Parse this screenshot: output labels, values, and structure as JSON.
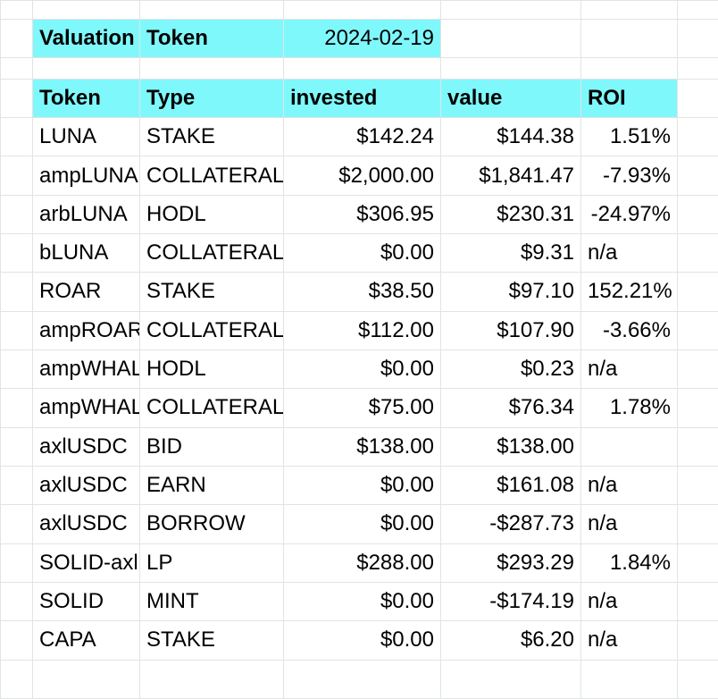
{
  "colors": {
    "highlight": "#7ff8fb",
    "grid": "#e2e3e3"
  },
  "header": {
    "label1": "Valuation",
    "label2": "Token",
    "date": "2024-02-19"
  },
  "columns": [
    "Token",
    "Type",
    "invested",
    "value",
    "ROI"
  ],
  "rows": [
    {
      "token": "LUNA",
      "type": "STAKE",
      "invested": "$142.24",
      "value": "$144.38",
      "roi": "1.51%",
      "roi_align": "right"
    },
    {
      "token": "ampLUNA",
      "type": "COLLATERAL",
      "invested": "$2,000.00",
      "value": "$1,841.47",
      "roi": "-7.93%",
      "roi_align": "right"
    },
    {
      "token": "arbLUNA",
      "type": "HODL",
      "invested": "$306.95",
      "value": "$230.31",
      "roi": "-24.97%",
      "roi_align": "right"
    },
    {
      "token": "bLUNA",
      "type": "COLLATERAL",
      "invested": "$0.00",
      "value": "$9.31",
      "roi": "n/a",
      "roi_align": "left"
    },
    {
      "token": "ROAR",
      "type": "STAKE",
      "invested": "$38.50",
      "value": "$97.10",
      "roi": "152.21%",
      "roi_align": "right"
    },
    {
      "token": "ampROAR",
      "type": "COLLATERAL",
      "invested": "$112.00",
      "value": "$107.90",
      "roi": "-3.66%",
      "roi_align": "right"
    },
    {
      "token": "ampWHALE",
      "type": "HODL",
      "invested": "$0.00",
      "value": "$0.23",
      "roi": "n/a",
      "roi_align": "left"
    },
    {
      "token": "ampWHALE",
      "type": "COLLATERAL",
      "invested": "$75.00",
      "value": "$76.34",
      "roi": "1.78%",
      "roi_align": "right"
    },
    {
      "token": "axlUSDC",
      "type": "BID",
      "invested": "$138.00",
      "value": "$138.00",
      "roi": "",
      "roi_align": "right"
    },
    {
      "token": "axlUSDC",
      "type": "EARN",
      "invested": "$0.00",
      "value": "$161.08",
      "roi": "n/a",
      "roi_align": "left"
    },
    {
      "token": "axlUSDC",
      "type": "BORROW",
      "invested": "$0.00",
      "value": "-$287.73",
      "roi": "n/a",
      "roi_align": "left"
    },
    {
      "token": "SOLID-axlUSDC",
      "type": "LP",
      "invested": "$288.00",
      "value": "$293.29",
      "roi": "1.84%",
      "roi_align": "right"
    },
    {
      "token": "SOLID",
      "type": "MINT",
      "invested": "$0.00",
      "value": "-$174.19",
      "roi": "n/a",
      "roi_align": "left"
    },
    {
      "token": "CAPA",
      "type": "STAKE",
      "invested": "$0.00",
      "value": "$6.20",
      "roi": "n/a",
      "roi_align": "left"
    }
  ]
}
